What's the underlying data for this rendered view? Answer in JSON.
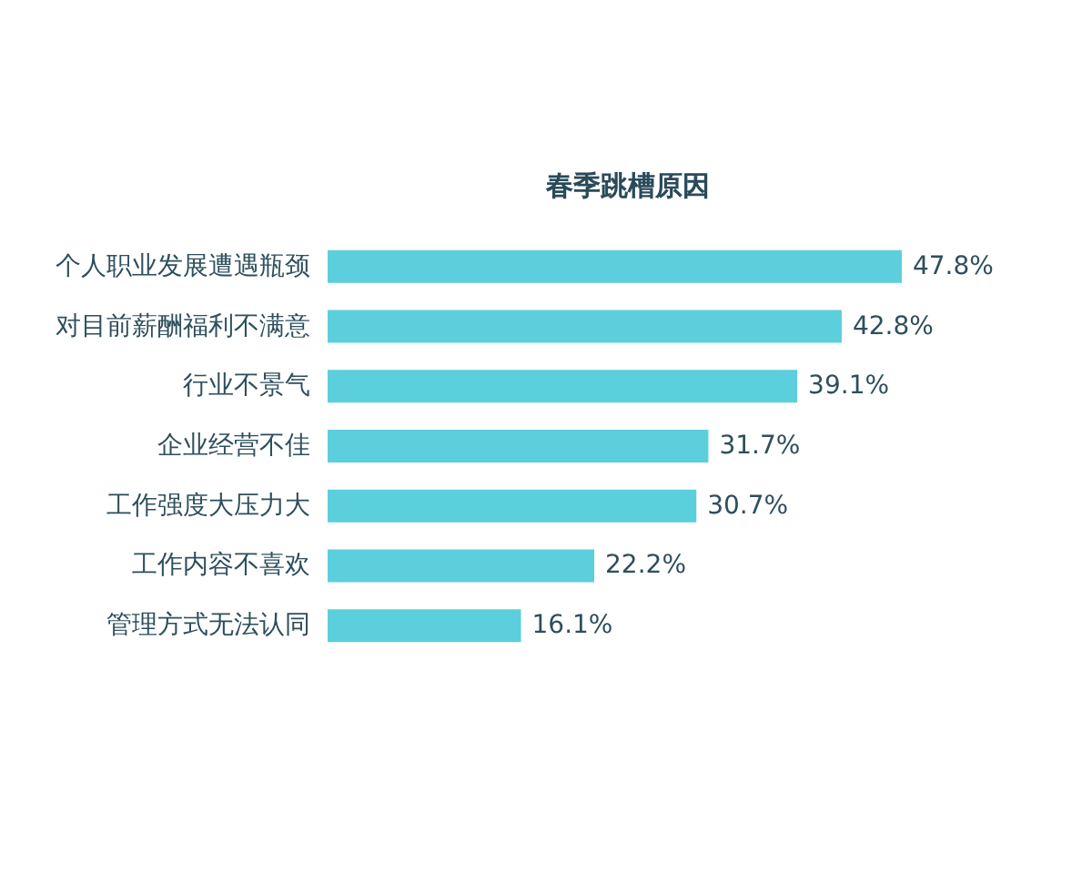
{
  "chart_data": {
    "type": "bar",
    "orientation": "horizontal",
    "title": "春季跳槽原因",
    "categories": [
      "个人职业发展遭遇瓶颈",
      "对目前薪酬福利不满意",
      "行业不景气",
      "企业经营不佳",
      "工作强度大压力大",
      "工作内容不喜欢",
      "管理方式无法认同"
    ],
    "values": [
      47.8,
      42.8,
      39.1,
      31.7,
      30.7,
      22.2,
      16.1
    ],
    "value_labels": [
      "47.8%",
      "42.8%",
      "39.1%",
      "31.7%",
      "30.7%",
      "22.2%",
      "16.1%"
    ],
    "color": "#5ccfdc"
  }
}
